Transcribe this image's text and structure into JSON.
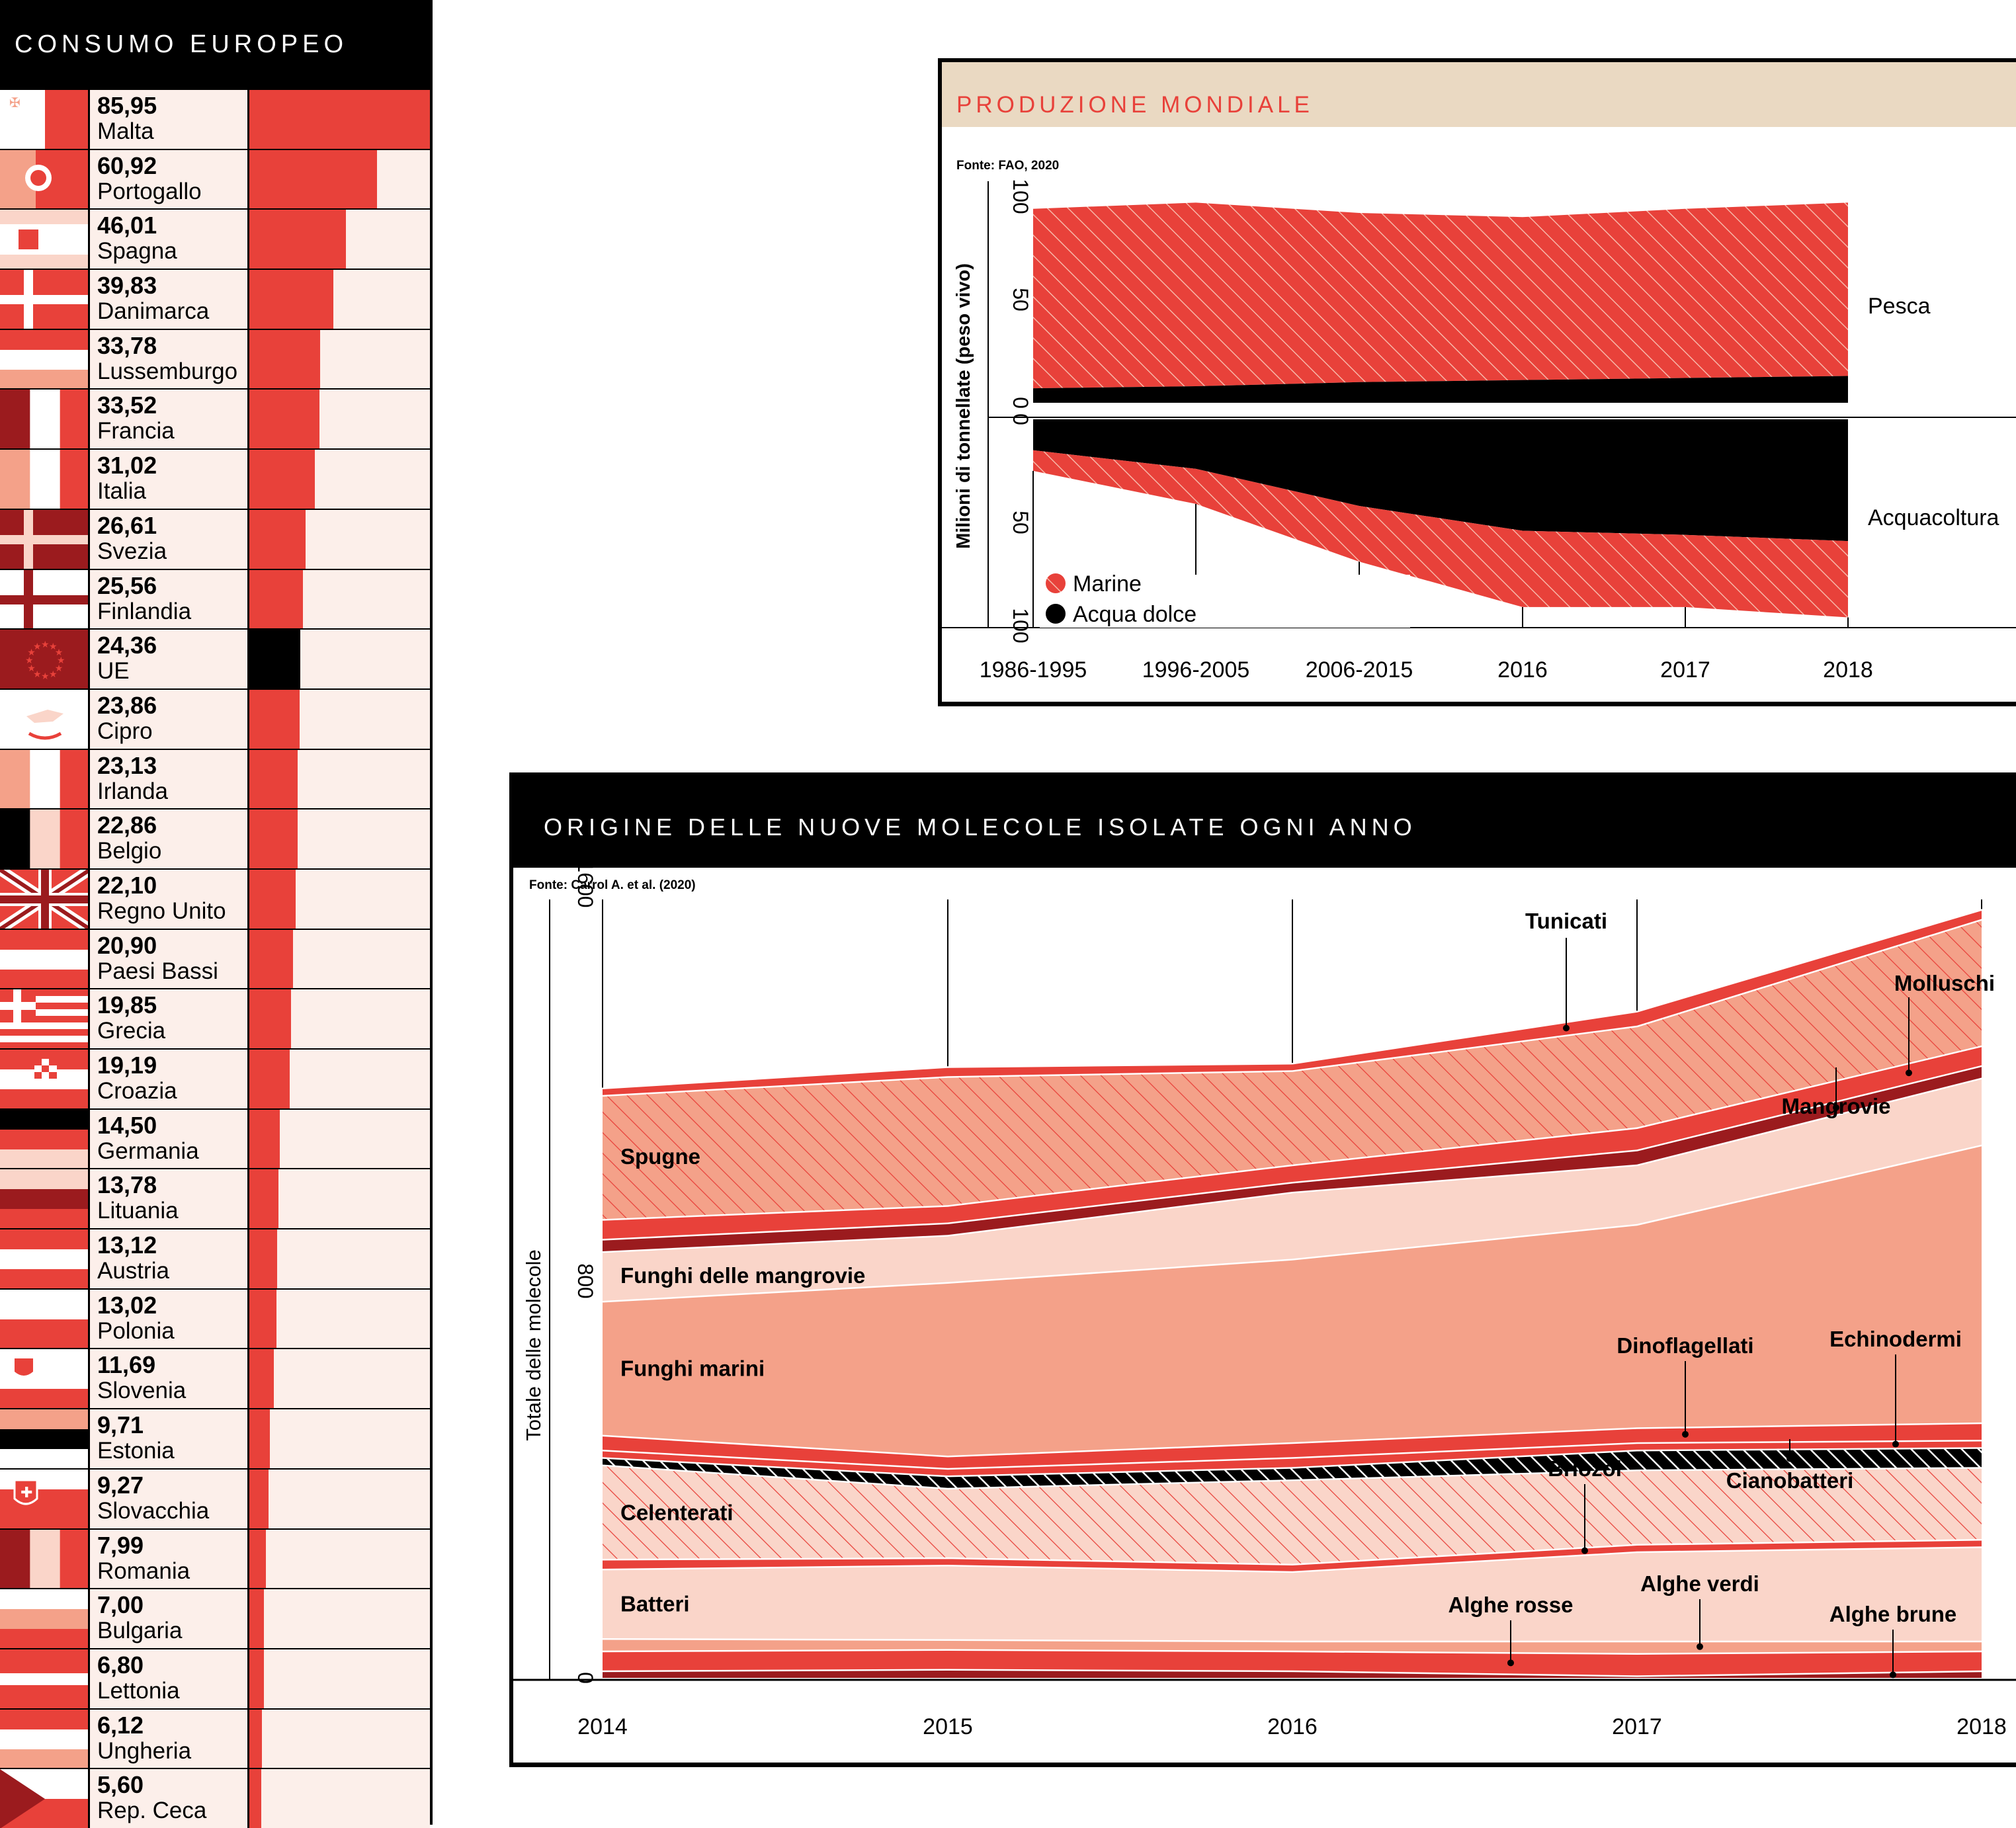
{
  "consumo": {
    "title": "CONSUMO EUROPEO",
    "max_value": 85.95,
    "rows": [
      {
        "value": "85,95",
        "num": 85.95,
        "country": "Malta",
        "flag": "malta",
        "bar_color": "#e8413a"
      },
      {
        "value": "60,92",
        "num": 60.92,
        "country": "Portogallo",
        "flag": "portugal",
        "bar_color": "#e8413a"
      },
      {
        "value": "46,01",
        "num": 46.01,
        "country": "Spagna",
        "flag": "spain",
        "bar_color": "#e8413a"
      },
      {
        "value": "39,83",
        "num": 39.83,
        "country": "Danimarca",
        "flag": "denmark",
        "bar_color": "#e8413a"
      },
      {
        "value": "33,78",
        "num": 33.78,
        "country": "Lussemburgo",
        "flag": "luxembourg",
        "bar_color": "#e8413a"
      },
      {
        "value": "33,52",
        "num": 33.52,
        "country": "Francia",
        "flag": "france",
        "bar_color": "#e8413a"
      },
      {
        "value": "31,02",
        "num": 31.02,
        "country": "Italia",
        "flag": "italy",
        "bar_color": "#e8413a"
      },
      {
        "value": "26,61",
        "num": 26.61,
        "country": "Svezia",
        "flag": "sweden",
        "bar_color": "#e8413a"
      },
      {
        "value": "25,56",
        "num": 25.56,
        "country": "Finlandia",
        "flag": "finland",
        "bar_color": "#e8413a"
      },
      {
        "value": "24,36",
        "num": 24.36,
        "country": "UE",
        "flag": "eu",
        "bar_color": "#000000"
      },
      {
        "value": "23,86",
        "num": 23.86,
        "country": "Cipro",
        "flag": "cyprus",
        "bar_color": "#e8413a"
      },
      {
        "value": "23,13",
        "num": 23.13,
        "country": "Irlanda",
        "flag": "ireland",
        "bar_color": "#e8413a"
      },
      {
        "value": "22,86",
        "num": 22.86,
        "country": "Belgio",
        "flag": "belgium",
        "bar_color": "#e8413a"
      },
      {
        "value": "22,10",
        "num": 22.1,
        "country": "Regno Unito",
        "flag": "uk",
        "bar_color": "#e8413a"
      },
      {
        "value": "20,90",
        "num": 20.9,
        "country": "Paesi Bassi",
        "flag": "netherlands",
        "bar_color": "#e8413a"
      },
      {
        "value": "19,85",
        "num": 19.85,
        "country": "Grecia",
        "flag": "greece",
        "bar_color": "#e8413a"
      },
      {
        "value": "19,19",
        "num": 19.19,
        "country": "Croazia",
        "flag": "croatia",
        "bar_color": "#e8413a"
      },
      {
        "value": "14,50",
        "num": 14.5,
        "country": "Germania",
        "flag": "germany",
        "bar_color": "#e8413a"
      },
      {
        "value": "13,78",
        "num": 13.78,
        "country": "Lituania",
        "flag": "lithuania",
        "bar_color": "#e8413a"
      },
      {
        "value": "13,12",
        "num": 13.12,
        "country": "Austria",
        "flag": "austria",
        "bar_color": "#e8413a"
      },
      {
        "value": "13,02",
        "num": 13.02,
        "country": "Polonia",
        "flag": "poland",
        "bar_color": "#e8413a"
      },
      {
        "value": "11,69",
        "num": 11.69,
        "country": "Slovenia",
        "flag": "slovenia",
        "bar_color": "#e8413a"
      },
      {
        "value": "9,71",
        "num": 9.71,
        "country": "Estonia",
        "flag": "estonia",
        "bar_color": "#e8413a"
      },
      {
        "value": "9,27",
        "num": 9.27,
        "country": "Slovacchia",
        "flag": "slovakia",
        "bar_color": "#e8413a"
      },
      {
        "value": "7,99",
        "num": 7.99,
        "country": "Romania",
        "flag": "romania",
        "bar_color": "#e8413a"
      },
      {
        "value": "7,00",
        "num": 7.0,
        "country": "Bulgaria",
        "flag": "bulgaria",
        "bar_color": "#e8413a"
      },
      {
        "value": "6,80",
        "num": 6.8,
        "country": "Lettonia",
        "flag": "latvia",
        "bar_color": "#e8413a"
      },
      {
        "value": "6,12",
        "num": 6.12,
        "country": "Ungheria",
        "flag": "hungary",
        "bar_color": "#e8413a"
      },
      {
        "value": "5,60",
        "num": 5.6,
        "country": "Rep. Ceca",
        "flag": "czech",
        "bar_color": "#e8413a"
      }
    ]
  },
  "colors": {
    "red": "#e8413a",
    "dark_red": "#9b1b1e",
    "salmon": "#f4a189",
    "pale": "#fad5c9",
    "bg_pink": "#fcefea",
    "black": "#000000",
    "header_beige": "#ead9c2"
  },
  "produzione": {
    "title": "PRODUZIONE MONDIALE",
    "source": "Fonte: FAO, 2020",
    "ylabel": "Milioni di tonnellate (peso vivo)",
    "y_ticks_top": [
      "100",
      "50",
      "0"
    ],
    "y_ticks_bottom": [
      "0",
      "50",
      "100"
    ],
    "x_labels": [
      "1986-1995",
      "1996-2005",
      "2006-2015",
      "2016",
      "2017",
      "2018"
    ],
    "label_pesca": "Pesca",
    "label_acquacoltura": "Acquacoltura",
    "legend": [
      {
        "label": "Marine",
        "icon": "hatched-red-dot-icon"
      },
      {
        "label": "Acqua dolce",
        "icon": "black-dot-icon"
      }
    ]
  },
  "molecole": {
    "title": "ORIGINE DELLE NUOVE MOLECOLE ISOLATE OGNI ANNO",
    "source": "Fonte: Carrol A. et al. (2020)",
    "ylabel": "Totale delle molecole",
    "y_ticks": [
      "1600",
      "800",
      "0"
    ],
    "x_labels": [
      "2014",
      "2015",
      "2016",
      "2017",
      "2018"
    ],
    "labels": {
      "spugne": "Spugne",
      "funghi_mangrovie": "Funghi delle mangrovie",
      "funghi_marini": "Funghi marini",
      "celenterati": "Celenterati",
      "batteri": "Batteri",
      "tunicati": "Tunicati",
      "molluschi": "Molluschi",
      "mangrovie": "Mangrovie",
      "dinoflagellati": "Dinoflagellati",
      "echinodermi": "Echinodermi",
      "briozoi": "Briozoi",
      "cianobatteri": "Cianobatteri",
      "alghe_rosse": "Alghe rosse",
      "alghe_verdi": "Alghe verdi",
      "alghe_brune": "Alghe brune"
    }
  },
  "chart_data": [
    {
      "type": "bar",
      "title": "CONSUMO EUROPEO",
      "categories": [
        "Malta",
        "Portogallo",
        "Spagna",
        "Danimarca",
        "Lussemburgo",
        "Francia",
        "Italia",
        "Svezia",
        "Finlandia",
        "UE",
        "Cipro",
        "Irlanda",
        "Belgio",
        "Regno Unito",
        "Paesi Bassi",
        "Grecia",
        "Croazia",
        "Germania",
        "Lituania",
        "Austria",
        "Polonia",
        "Slovenia",
        "Estonia",
        "Slovacchia",
        "Romania",
        "Bulgaria",
        "Lettonia",
        "Ungheria",
        "Rep. Ceca"
      ],
      "values": [
        85.95,
        60.92,
        46.01,
        39.83,
        33.78,
        33.52,
        31.02,
        26.61,
        25.56,
        24.36,
        23.86,
        23.13,
        22.86,
        22.1,
        20.9,
        19.85,
        19.19,
        14.5,
        13.78,
        13.12,
        13.02,
        11.69,
        9.71,
        9.27,
        7.99,
        7.0,
        6.8,
        6.12,
        5.6
      ],
      "orientation": "horizontal"
    },
    {
      "type": "area",
      "title": "PRODUZIONE MONDIALE",
      "x": [
        "1986-1995",
        "1996-2005",
        "2006-2015",
        "2016",
        "2017",
        "2018"
      ],
      "ylabel": "Milioni di tonnellate (peso vivo)",
      "ylim": [
        -100,
        100
      ],
      "groups": [
        {
          "name": "Pesca",
          "series": [
            {
              "name": "Acqua dolce",
              "values": [
                7,
                8,
                10,
                11,
                12,
                13
              ]
            },
            {
              "name": "Marine",
              "values": [
                87,
                89,
                82,
                79,
                82,
                84
              ]
            }
          ]
        },
        {
          "name": "Acquacoltura",
          "series": [
            {
              "name": "Acqua dolce",
              "values": [
                15,
                24,
                42,
                54,
                56,
                59
              ]
            },
            {
              "name": "Marine",
              "values": [
                10,
                17,
                27,
                37,
                35,
                37
              ]
            }
          ]
        }
      ],
      "legend": [
        "Marine",
        "Acqua dolce"
      ]
    },
    {
      "type": "area",
      "title": "ORIGINE DELLE NUOVE MOLECOLE ISOLATE OGNI ANNO",
      "x": [
        2014,
        2015,
        2016,
        2017,
        2018
      ],
      "ylabel": "Totale delle molecole",
      "ylim": [
        0,
        1600
      ],
      "series": [
        {
          "name": "Alghe brune",
          "values": [
            15,
            18,
            15,
            5,
            15
          ]
        },
        {
          "name": "Alghe rosse",
          "values": [
            40,
            40,
            40,
            45,
            40
          ]
        },
        {
          "name": "Alghe verdi",
          "values": [
            25,
            20,
            20,
            25,
            20
          ]
        },
        {
          "name": "Batteri",
          "values": [
            140,
            150,
            140,
            180,
            190
          ]
        },
        {
          "name": "Briozoi",
          "values": [
            20,
            15,
            15,
            15,
            15
          ]
        },
        {
          "name": "Celenterati",
          "values": [
            190,
            140,
            170,
            150,
            145
          ]
        },
        {
          "name": "Cianobatteri",
          "values": [
            15,
            25,
            25,
            40,
            40
          ]
        },
        {
          "name": "Echinodermi",
          "values": [
            15,
            15,
            20,
            15,
            15
          ]
        },
        {
          "name": "Dinoflagellati",
          "values": [
            30,
            25,
            30,
            30,
            35
          ]
        },
        {
          "name": "Funghi marini",
          "values": [
            270,
            350,
            370,
            410,
            560
          ]
        },
        {
          "name": "Funghi delle mangrovie",
          "values": [
            100,
            95,
            135,
            120,
            135
          ]
        },
        {
          "name": "Mangrovie",
          "values": [
            25,
            25,
            20,
            30,
            25
          ]
        },
        {
          "name": "Molluschi",
          "values": [
            40,
            35,
            35,
            45,
            40
          ]
        },
        {
          "name": "Spugne",
          "values": [
            250,
            260,
            190,
            205,
            255
          ]
        },
        {
          "name": "Tunicati",
          "values": [
            15,
            20,
            15,
            30,
            20
          ]
        }
      ]
    }
  ]
}
